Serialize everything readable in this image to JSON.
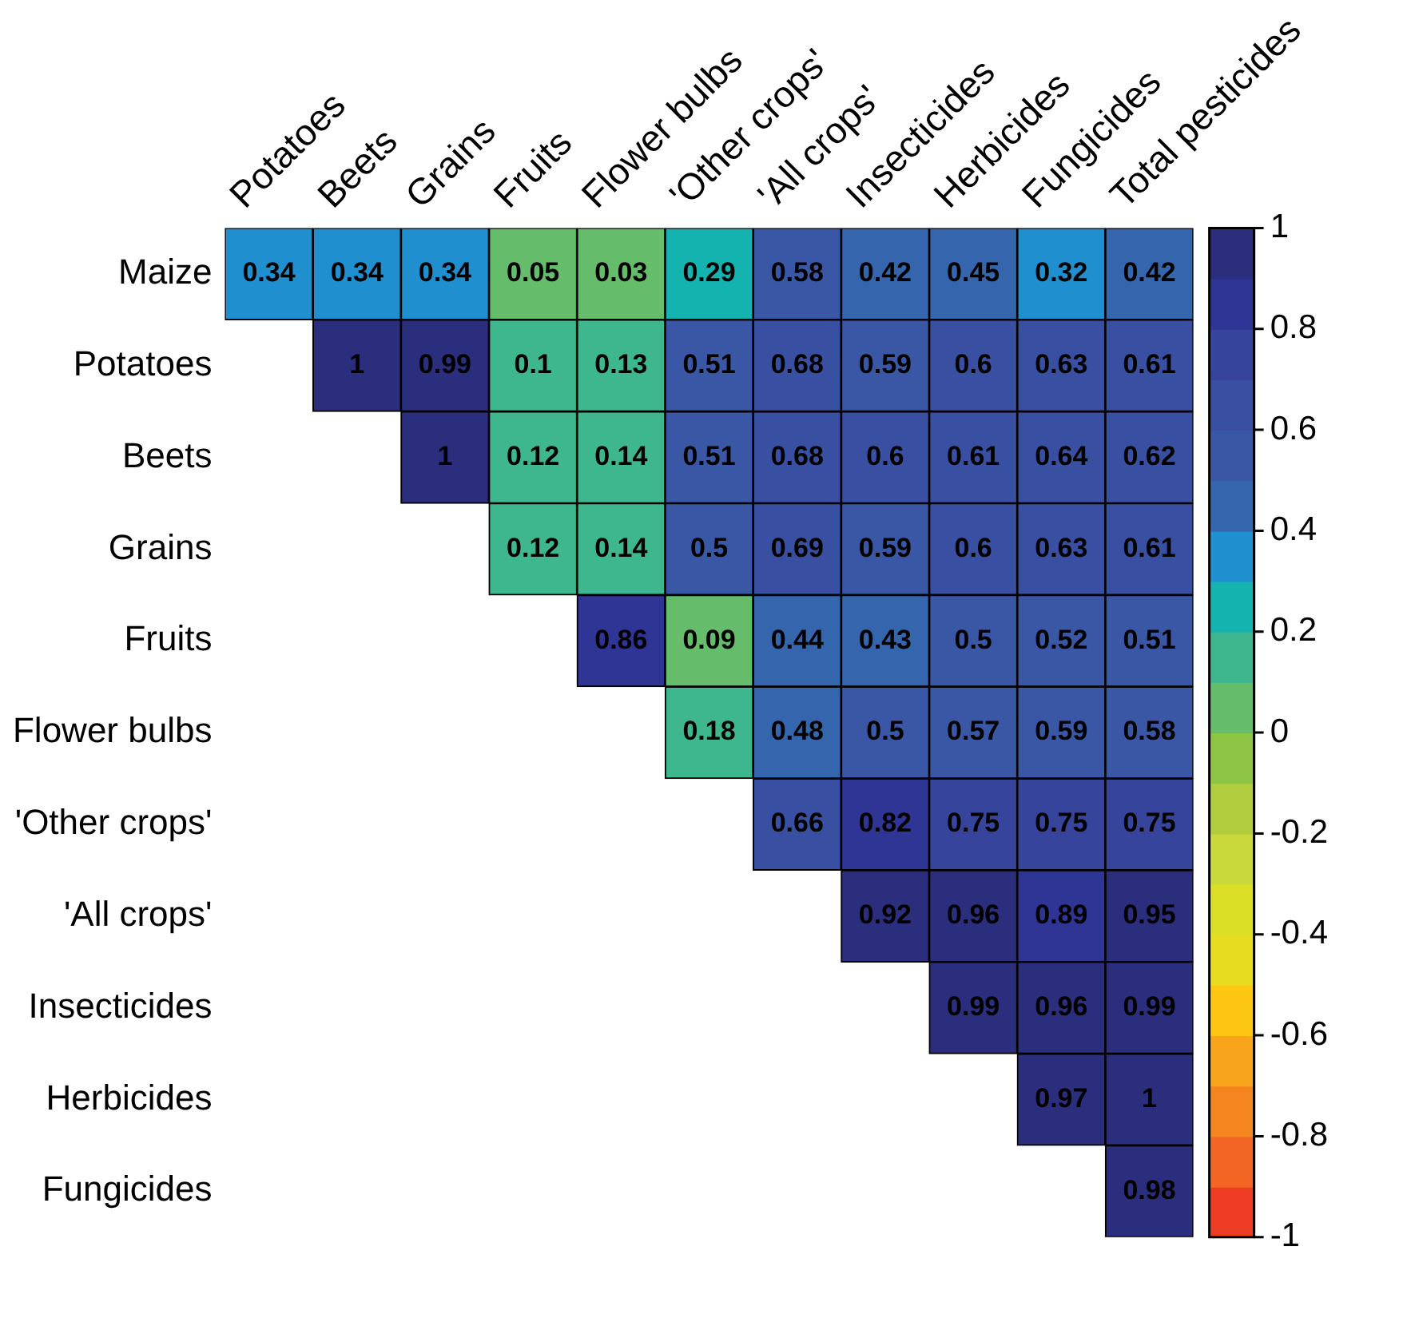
{
  "chart_data": {
    "type": "heatmap",
    "categories": [
      "Potatoes",
      "Beets",
      "Grains",
      "Fruits",
      "Flower bulbs",
      "'Other crops'",
      "'All crops'",
      "Insecticides",
      "Herbicides",
      "Fungicides",
      "Total pesticides"
    ],
    "y_categories": [
      "Maize",
      "Potatoes",
      "Beets",
      "Grains",
      "Fruits",
      "Flower bulbs",
      "'Other crops'",
      "'All crops'",
      "Insecticides",
      "Herbicides",
      "Fungicides"
    ],
    "cells": [
      [
        0.34,
        0.34,
        0.34,
        0.05,
        0.03,
        0.29,
        0.58,
        0.42,
        0.45,
        0.32,
        0.42
      ],
      [
        null,
        1,
        0.99,
        0.1,
        0.13,
        0.51,
        0.68,
        0.59,
        0.6,
        0.63,
        0.61
      ],
      [
        null,
        null,
        1,
        0.12,
        0.14,
        0.51,
        0.68,
        0.6,
        0.61,
        0.64,
        0.62
      ],
      [
        null,
        null,
        null,
        0.12,
        0.14,
        0.5,
        0.69,
        0.59,
        0.6,
        0.63,
        0.61
      ],
      [
        null,
        null,
        null,
        null,
        0.86,
        0.09,
        0.44,
        0.43,
        0.5,
        0.52,
        0.51
      ],
      [
        null,
        null,
        null,
        null,
        null,
        0.18,
        0.48,
        0.5,
        0.57,
        0.59,
        0.58
      ],
      [
        null,
        null,
        null,
        null,
        null,
        null,
        0.66,
        0.82,
        0.75,
        0.75,
        0.75
      ],
      [
        null,
        null,
        null,
        null,
        null,
        null,
        null,
        0.92,
        0.96,
        0.89,
        0.95
      ],
      [
        null,
        null,
        null,
        null,
        null,
        null,
        null,
        null,
        0.99,
        0.96,
        0.99
      ],
      [
        null,
        null,
        null,
        null,
        null,
        null,
        null,
        null,
        null,
        0.97,
        1
      ],
      [
        null,
        null,
        null,
        null,
        null,
        null,
        null,
        null,
        null,
        null,
        0.98
      ]
    ],
    "clim": [
      -1,
      1
    ],
    "cticks": [
      -1,
      -0.8,
      -0.6,
      -0.4,
      -0.2,
      0,
      0.2,
      0.4,
      0.6,
      0.8,
      1
    ],
    "colors": [
      "#ee3b24",
      "#f26524",
      "#f5851f",
      "#f9a51b",
      "#fcc612",
      "#e8dc20",
      "#dbe027",
      "#c9d83a",
      "#b0cd3e",
      "#8ec446",
      "#65bc6a",
      "#3fb78e",
      "#15b3b0",
      "#1f8fcf",
      "#3565ad",
      "#3a57a6",
      "#384fa2",
      "#36449c",
      "#2e3594",
      "#2a2e7c"
    ],
    "data_labels": true
  }
}
